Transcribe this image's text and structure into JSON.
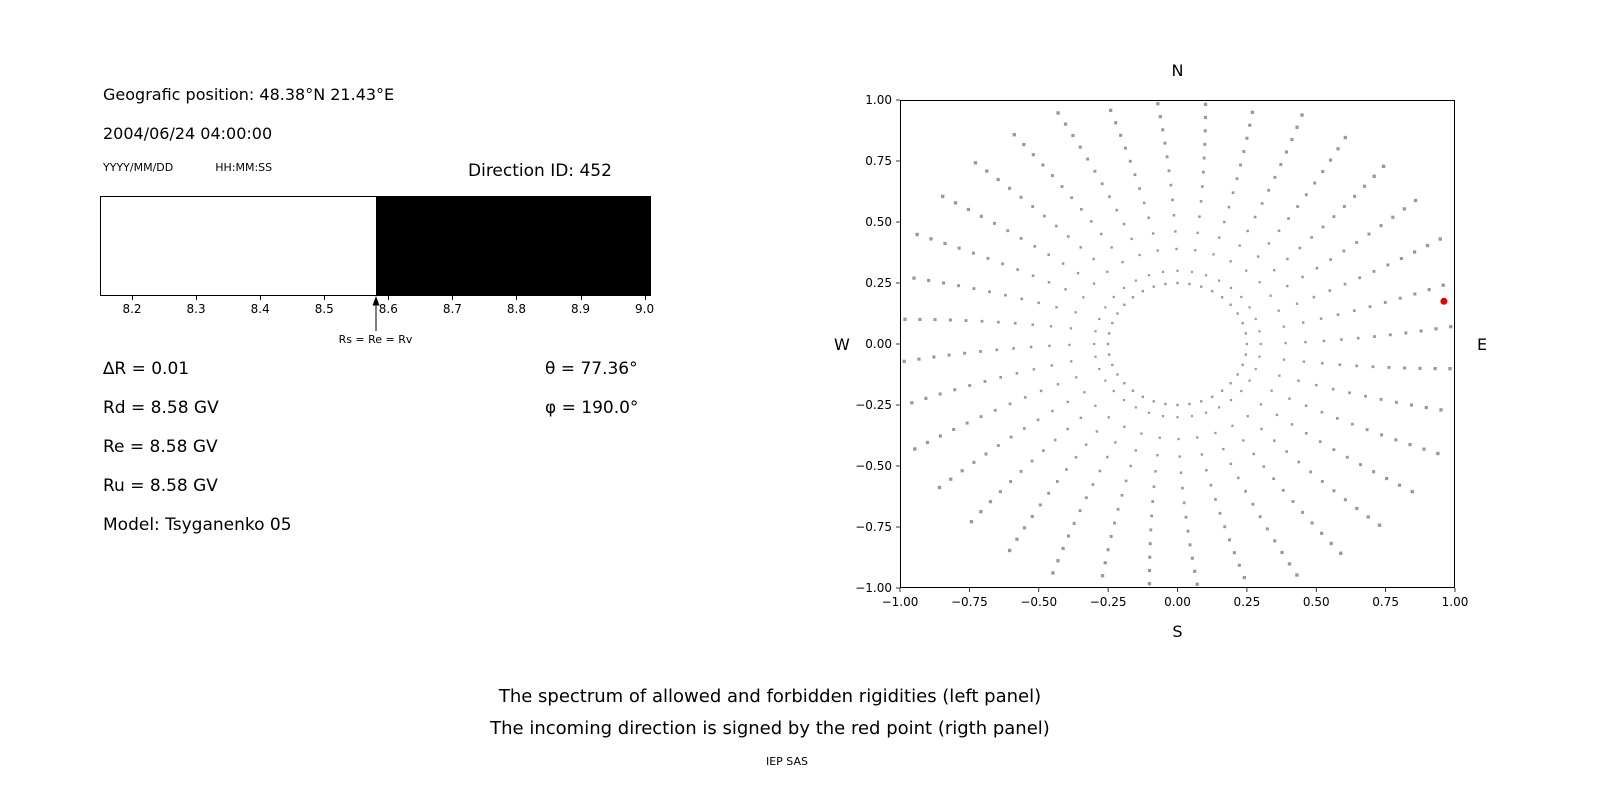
{
  "header": {
    "geo_position": "Geografic position: 48.38°N 21.43°E",
    "datetime": "2004/06/24 04:00:00",
    "date_format_label": "YYYY/MM/DD",
    "time_format_label": "HH:MM:SS",
    "direction_id_label": "Direction ID: 452"
  },
  "left_panel": {
    "arrow_label": "Rs = Re = Rv",
    "params_left": [
      "∆R = 0.01",
      "Rd = 8.58 GV",
      "Re = 8.58 GV",
      "Ru = 8.58 GV",
      "Model: Tsyganenko 05"
    ],
    "params_right": [
      "θ = 77.36°",
      "φ = 190.0°"
    ]
  },
  "compass": {
    "north": "N",
    "south": "S",
    "west": "W",
    "east": "E"
  },
  "caption": {
    "line1": "The spectrum of allowed and forbidden rigidities (left panel)",
    "line2": "The incoming direction is signed by the red point (rigth panel)",
    "credit": "IEP SAS"
  },
  "chart_data": [
    {
      "type": "area",
      "description": "Rigidity spectrum: white region = allowed rigidities, black region = forbidden rigidities",
      "x_range": [
        8.15,
        9.01
      ],
      "boundary": 8.58,
      "allowed_range": [
        8.15,
        8.58
      ],
      "forbidden_range": [
        8.58,
        9.01
      ],
      "x_ticks": [
        8.2,
        8.3,
        8.4,
        8.5,
        8.6,
        8.7,
        8.8,
        8.9,
        9.0
      ],
      "tick_labels": [
        "8.2",
        "8.3",
        "8.4",
        "8.5",
        "8.6",
        "8.7",
        "8.8",
        "8.9",
        "9.0"
      ],
      "annotation": {
        "text": "Rs = Re = Rv",
        "x": 8.58
      },
      "colors": {
        "allowed": "#ffffff",
        "forbidden": "#000000"
      }
    },
    {
      "type": "scatter",
      "description": "Sky map of asymptotic directions (gray dots); red point marks the incoming direction",
      "xlim": [
        -1,
        1
      ],
      "ylim": [
        -1,
        1
      ],
      "x_ticks": [
        -1,
        -0.75,
        -0.5,
        -0.25,
        0,
        0.25,
        0.5,
        0.75,
        1
      ],
      "y_ticks": [
        1,
        0.75,
        0.5,
        0.25,
        0,
        -0.25,
        -0.5,
        -0.75,
        -1
      ],
      "x_tick_labels": [
        "−1.00",
        "−0.75",
        "−0.50",
        "−0.25",
        "0.00",
        "0.25",
        "0.50",
        "0.75",
        "1.00"
      ],
      "y_tick_labels": [
        "1.00",
        "0.75",
        "0.50",
        "0.25",
        "0.00",
        "−0.25",
        "−0.50",
        "−0.75",
        "−1.00"
      ],
      "dot_color": "#999999",
      "red_point": {
        "x": 0.96,
        "y": 0.175,
        "color": "#e50000"
      },
      "pattern": {
        "rings": [
          {
            "radius": 0.25,
            "count": 36
          }
        ],
        "rays": {
          "count": 36,
          "start_deg": 0,
          "step_deg": 10,
          "r_start": 0.3,
          "r_end": 1.04,
          "dots_per_ray": 13,
          "curve_deg_per_unit_r": 6,
          "spacing_exponent": 0.85
        }
      }
    }
  ]
}
